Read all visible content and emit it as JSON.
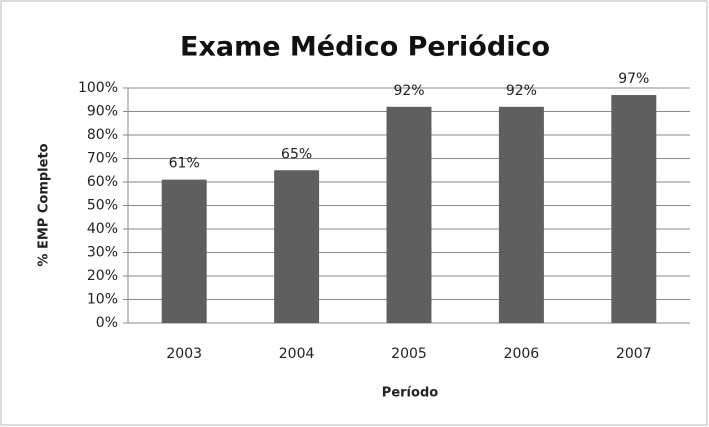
{
  "chart_data": {
    "type": "bar",
    "title": "Exame Médico Periódico",
    "x_label": "Período",
    "y_label": "% EMP Completo",
    "categories": [
      "2003",
      "2004",
      "2005",
      "2006",
      "2007"
    ],
    "values": [
      61,
      65,
      92,
      92,
      97
    ],
    "value_labels": [
      "61%",
      "65%",
      "92%",
      "92%",
      "97%"
    ],
    "color": "#5f5f5f",
    "ylim": [
      0,
      100
    ],
    "yticks": [
      {
        "value": 0,
        "label": "0%"
      },
      {
        "value": 10,
        "label": "10%"
      },
      {
        "value": 20,
        "label": "20%"
      },
      {
        "value": 30,
        "label": "30%"
      },
      {
        "value": 40,
        "label": "40%"
      },
      {
        "value": 50,
        "label": "50%"
      },
      {
        "value": 60,
        "label": "60%"
      },
      {
        "value": 70,
        "label": "70%"
      },
      {
        "value": 80,
        "label": "80%"
      },
      {
        "value": 90,
        "label": "90%"
      },
      {
        "value": 100,
        "label": "100%"
      }
    ],
    "grid": true
  }
}
